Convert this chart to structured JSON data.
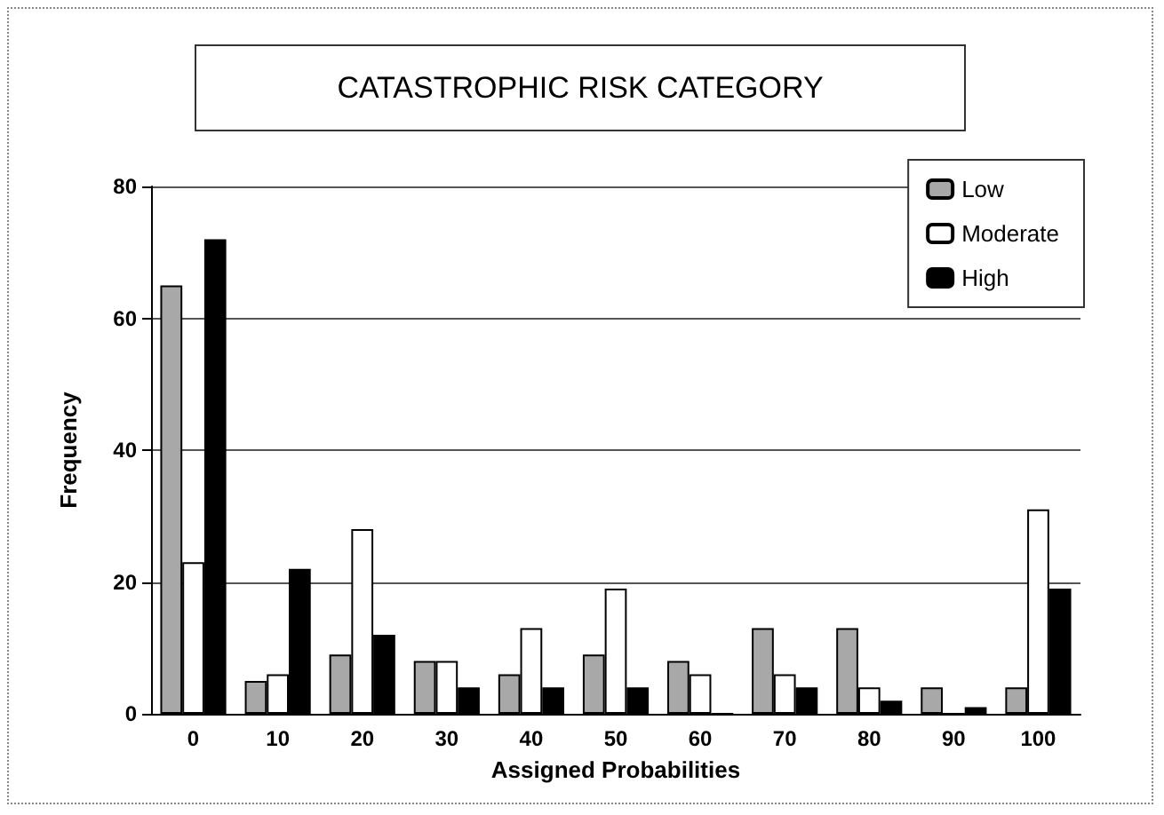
{
  "chart_data": {
    "type": "bar",
    "title": "CATASTROPHIC RISK CATEGORY",
    "xlabel": "Assigned Probabilities",
    "ylabel": "Frequency",
    "categories": [
      "0",
      "10",
      "20",
      "30",
      "40",
      "50",
      "60",
      "70",
      "80",
      "90",
      "100"
    ],
    "series": [
      {
        "name": "Low",
        "color": "#a8a8a8",
        "values": [
          65,
          5,
          9,
          8,
          6,
          9,
          8,
          13,
          13,
          4,
          4
        ]
      },
      {
        "name": "Moderate",
        "color": "#ffffff",
        "values": [
          23,
          6,
          28,
          8,
          13,
          19,
          6,
          6,
          4,
          0,
          31
        ]
      },
      {
        "name": "High",
        "color": "#000000",
        "values": [
          72,
          22,
          12,
          4,
          4,
          4,
          0,
          4,
          2,
          1,
          19
        ]
      }
    ],
    "ylim": [
      0,
      80
    ],
    "yticks": [
      0,
      20,
      40,
      60,
      80
    ],
    "grid": "y",
    "legend": "top right"
  }
}
